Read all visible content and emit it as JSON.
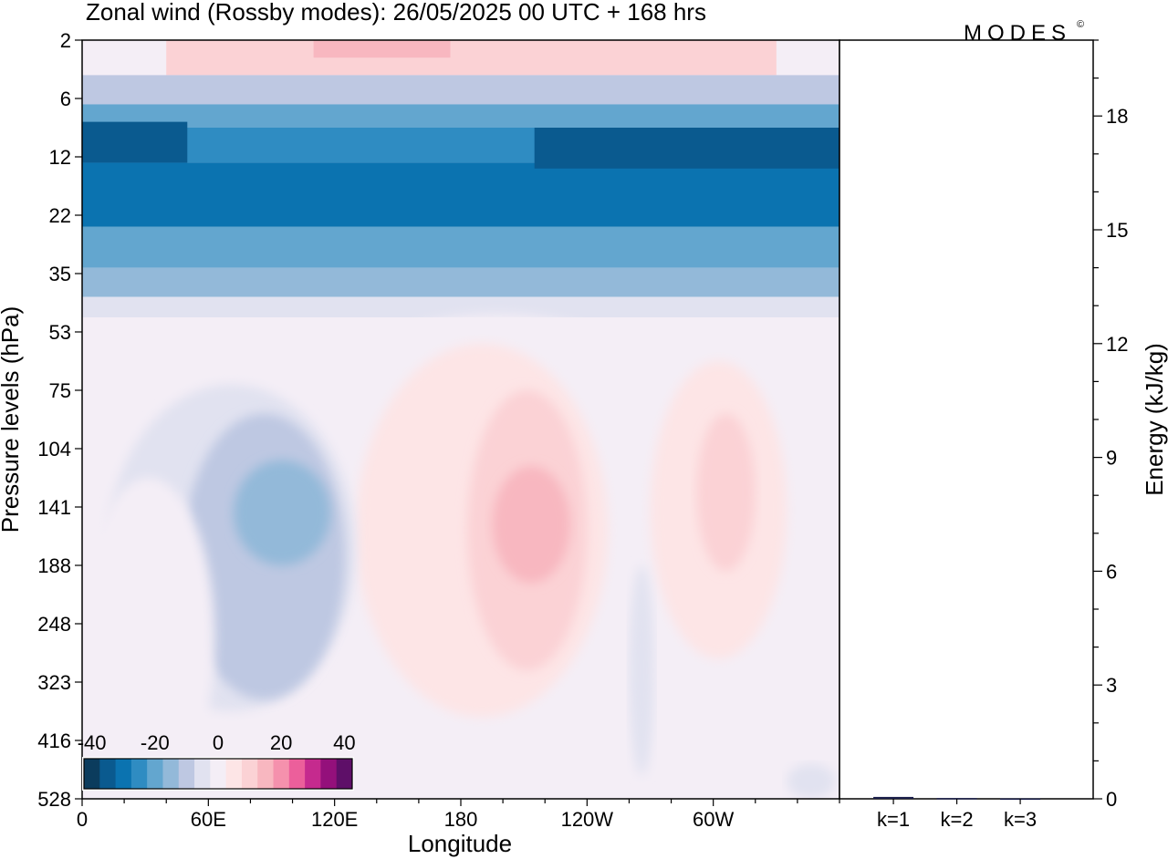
{
  "title": "Zonal wind (Rossby modes):  26/05/2025  00 UTC  + 168 hrs",
  "brand": "MODES",
  "brand_mark": "©",
  "chart_data": [
    {
      "type": "heatmap",
      "name": "Zonal wind cross-section",
      "xlabel": "Longitude",
      "ylabel": "Pressure levels (hPa)",
      "x_ticks": [
        "0",
        "60E",
        "120E",
        "180",
        "120W",
        "60W"
      ],
      "x_tick_lon": [
        0,
        60,
        120,
        180,
        240,
        300
      ],
      "xlim": [
        0,
        360
      ],
      "y_ticks": [
        "2",
        "6",
        "12",
        "22",
        "35",
        "53",
        "75",
        "104",
        "141",
        "188",
        "248",
        "323",
        "416",
        "528"
      ],
      "y_scale": "model levels (pressure, top to bottom)",
      "colorbar": {
        "tick_labels": [
          "-40",
          "-20",
          "0",
          "20",
          "40"
        ],
        "tick_values": [
          -40,
          -20,
          0,
          20,
          40
        ],
        "levels": [
          -40,
          -35,
          -30,
          -25,
          -20,
          -15,
          -10,
          -5,
          0,
          5,
          10,
          15,
          20,
          25,
          30,
          35,
          40
        ],
        "colors": [
          "#0b3c5d",
          "#0a5a8f",
          "#0b73b0",
          "#2f8cc2",
          "#63a6cf",
          "#93b9d9",
          "#bec8e2",
          "#e1e2f0",
          "#f4eef6",
          "#fde5e6",
          "#fbd2d5",
          "#f8b7c0",
          "#f591ad",
          "#ec5f9b",
          "#c52a8e",
          "#94107b",
          "#5e0f68"
        ]
      },
      "contour_fields": [
        {
          "name": "band",
          "value": 10,
          "lon": [
            40,
            330
          ],
          "lev": [
            0,
            0.6
          ]
        },
        {
          "name": "band",
          "value": 18,
          "lon": [
            110,
            175
          ],
          "lev": [
            0,
            0.3
          ]
        },
        {
          "name": "band",
          "value": -8,
          "lon": [
            0,
            360
          ],
          "lev": [
            0.6,
            1.1
          ]
        },
        {
          "name": "band",
          "value": -18,
          "lon": [
            0,
            360
          ],
          "lev": [
            1.1,
            1.5
          ]
        },
        {
          "name": "band",
          "value": -25,
          "lon": [
            0,
            360
          ],
          "lev": [
            1.5,
            2.1
          ]
        },
        {
          "name": "band",
          "value": -30,
          "lon": [
            0,
            360
          ],
          "lev": [
            2.1,
            3.2
          ]
        },
        {
          "name": "band",
          "value": -33,
          "lon": [
            0,
            50
          ],
          "lev": [
            1.4,
            2.1
          ]
        },
        {
          "name": "band",
          "value": -33,
          "lon": [
            215,
            360
          ],
          "lev": [
            1.5,
            2.2
          ]
        },
        {
          "name": "band",
          "value": -20,
          "lon": [
            0,
            360
          ],
          "lev": [
            3.2,
            3.9
          ]
        },
        {
          "name": "band",
          "value": -12,
          "lon": [
            0,
            360
          ],
          "lev": [
            3.9,
            4.4
          ]
        },
        {
          "name": "band",
          "value": -5,
          "lon": [
            0,
            360
          ],
          "lev": [
            4.4,
            4.75
          ]
        },
        {
          "name": "blob",
          "value": 3,
          "lon": [
            75,
            320
          ],
          "lev": [
            4.7,
            11.8
          ]
        },
        {
          "name": "blob",
          "value": 8,
          "lon": [
            130,
            250
          ],
          "lev": [
            5.2,
            11.6
          ]
        },
        {
          "name": "blob",
          "value": 8,
          "lon": [
            270,
            335
          ],
          "lev": [
            5.5,
            10.6
          ]
        },
        {
          "name": "blob",
          "value": 13,
          "lon": [
            183,
            240
          ],
          "lev": [
            6.0,
            10.8
          ]
        },
        {
          "name": "blob",
          "value": 13,
          "lon": [
            292,
            320
          ],
          "lev": [
            6.4,
            9.1
          ]
        },
        {
          "name": "blob",
          "value": 18,
          "lon": [
            195,
            232
          ],
          "lev": [
            7.3,
            9.3
          ]
        },
        {
          "name": "blob",
          "value": -4,
          "lon": [
            12,
            130
          ],
          "lev": [
            5.9,
            11.5
          ]
        },
        {
          "name": "blob",
          "value": -8,
          "lon": [
            48,
            125
          ],
          "lev": [
            6.4,
            11.3
          ]
        },
        {
          "name": "blob",
          "value": -13,
          "lon": [
            72,
            118
          ],
          "lev": [
            7.2,
            9.0
          ]
        },
        {
          "name": "blob",
          "value": -4,
          "lon": [
            260,
            272
          ],
          "lev": [
            9.0,
            12.6
          ]
        },
        {
          "name": "blob",
          "value": -3,
          "lon": [
            335,
            358
          ],
          "lev": [
            12.4,
            13.0
          ]
        },
        {
          "name": "blob",
          "value": 3,
          "lon": [
            0,
            63
          ],
          "lev": [
            7.5,
            13.0
          ]
        }
      ]
    },
    {
      "type": "bar",
      "name": "Energy spectrum",
      "ylabel": "Energy (kJ/kg)",
      "ylim": [
        0,
        20
      ],
      "y_ticks": [
        0,
        3,
        6,
        9,
        12,
        15,
        18
      ],
      "categories": [
        "k=1",
        "k=2",
        "k=3"
      ],
      "values": [
        0.05,
        0.02,
        0.01
      ],
      "bar_color": "#1a1e4a"
    }
  ]
}
